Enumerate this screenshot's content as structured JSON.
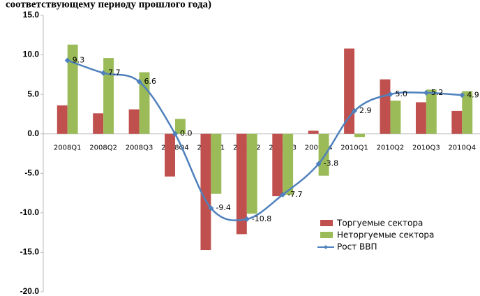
{
  "chart_data": {
    "type": "bar",
    "title": "соответствующему периоду прошлого года)",
    "categories": [
      "2008Q1",
      "2008Q2",
      "2008Q3",
      "2008Q4",
      "2009Q1",
      "2009Q2",
      "2009Q3",
      "2009Q4",
      "2010Q1",
      "2010Q2",
      "2010Q3",
      "2010Q4"
    ],
    "series": [
      {
        "name": "Торгуемые сектора",
        "type": "bar",
        "color": "#c0504d",
        "values": [
          3.6,
          2.6,
          3.1,
          -5.4,
          -14.7,
          -12.7,
          -7.9,
          0.4,
          10.8,
          6.9,
          4.0,
          2.9
        ]
      },
      {
        "name": "Неторгуемые сектора",
        "type": "bar",
        "color": "#9bbb59",
        "values": [
          11.3,
          9.6,
          7.8,
          1.9,
          -7.6,
          -10.1,
          -7.7,
          -5.3,
          -0.4,
          4.2,
          5.6,
          5.4
        ]
      },
      {
        "name": "Рост ВВП",
        "type": "line",
        "color": "#4f81bd",
        "values": [
          9.3,
          7.7,
          6.6,
          0.0,
          -9.4,
          -10.8,
          -7.7,
          -3.8,
          2.9,
          5.0,
          5.2,
          4.9
        ],
        "value_labels": [
          "9.3",
          "7.7",
          "6.6",
          "0.0",
          "-9.4",
          "-10.8",
          "-7.7",
          "-3.8",
          "2.9",
          "5.0",
          "5.2",
          "4.9"
        ]
      }
    ],
    "ylim": [
      -20,
      15
    ],
    "yticks": [
      {
        "value": -20,
        "label": "-20.0"
      },
      {
        "value": -15,
        "label": "-15.0"
      },
      {
        "value": -10,
        "label": "-10.0"
      },
      {
        "value": -5,
        "label": "-5.0"
      },
      {
        "value": 0,
        "label": "0.0"
      },
      {
        "value": 5,
        "label": "5.0"
      },
      {
        "value": 10,
        "label": "10.0"
      },
      {
        "value": 15,
        "label": "15.0"
      }
    ],
    "grid": false,
    "legend": "lower-right"
  }
}
